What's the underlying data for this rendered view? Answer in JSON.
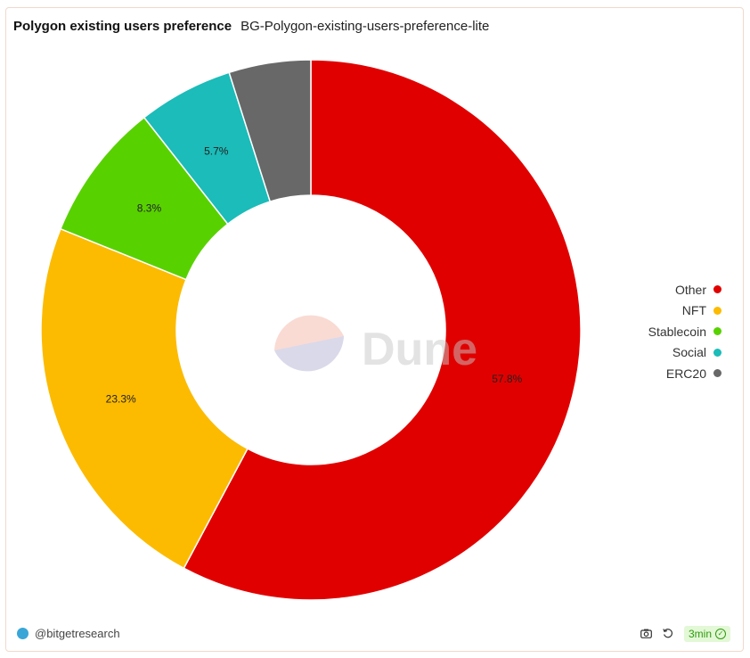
{
  "header": {
    "title": "Polygon existing users preference",
    "subtitle": "BG-Polygon-existing-users-preference-lite"
  },
  "chart_data": {
    "type": "pie",
    "title": "Polygon existing users preference",
    "subtitle": "BG-Polygon-existing-users-preference-lite",
    "donut": true,
    "legend_position": "right",
    "series": [
      {
        "name": "Other",
        "value": 57.8,
        "label": "57.8%",
        "color": "#e10000"
      },
      {
        "name": "NFT",
        "value": 23.3,
        "label": "23.3%",
        "color": "#fcbb00"
      },
      {
        "name": "Stablecoin",
        "value": 8.3,
        "label": "8.3%",
        "color": "#58d100"
      },
      {
        "name": "Social",
        "value": 5.7,
        "label": "5.7%",
        "color": "#1bbcb9"
      },
      {
        "name": "ERC20",
        "value": 4.9,
        "label": "",
        "color": "#686868"
      }
    ]
  },
  "watermark": {
    "text": "Dune"
  },
  "footer": {
    "author": "@bitgetresearch",
    "refresh_badge": "3min",
    "icons": [
      "camera-icon",
      "refresh-icon",
      "check-circle-icon"
    ]
  }
}
